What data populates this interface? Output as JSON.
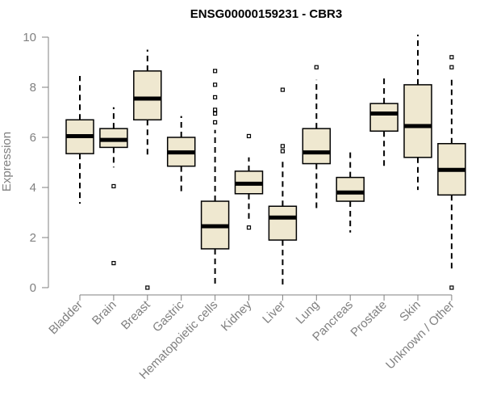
{
  "chart_data": {
    "type": "box",
    "title": "ENSG00000159231 - CBR3",
    "xlabel": "",
    "ylabel": "Expression",
    "ylim": [
      0,
      10
    ],
    "yticks": [
      0,
      2,
      4,
      6,
      8,
      10
    ],
    "grid": false,
    "legend": "none",
    "colors": {
      "box_fill": "#efe8d0",
      "outline": "#000000",
      "axis": "#808080",
      "tick_text": "#808080"
    },
    "categories": [
      "Bladder",
      "Brain",
      "Breast",
      "Gastric",
      "Hematopoietic cells",
      "Kidney",
      "Liver",
      "Lung",
      "Pancreas",
      "Prostate",
      "Skin",
      "Unknown / Other"
    ],
    "boxes": [
      {
        "category": "Bladder",
        "whisker_low": 3.35,
        "q1": 5.35,
        "median": 6.05,
        "q3": 6.7,
        "whisker_high": 8.45,
        "outliers": []
      },
      {
        "category": "Brain",
        "whisker_low": 4.8,
        "q1": 5.6,
        "median": 5.9,
        "q3": 6.35,
        "whisker_high": 7.2,
        "outliers": [
          4.05,
          0.98
        ]
      },
      {
        "category": "Breast",
        "whisker_low": 5.2,
        "q1": 6.7,
        "median": 7.55,
        "q3": 8.65,
        "whisker_high": 9.5,
        "outliers": [
          0.0
        ]
      },
      {
        "category": "Gastric",
        "whisker_low": 3.85,
        "q1": 4.85,
        "median": 5.4,
        "q3": 6.0,
        "whisker_high": 6.85,
        "outliers": []
      },
      {
        "category": "Hematopoietic cells",
        "whisker_low": 0.0,
        "q1": 1.55,
        "median": 2.45,
        "q3": 3.45,
        "whisker_high": 6.3,
        "outliers": [
          6.6,
          6.95,
          7.1,
          7.6,
          8.1,
          8.65
        ]
      },
      {
        "category": "Kidney",
        "whisker_low": 2.6,
        "q1": 3.75,
        "median": 4.15,
        "q3": 4.65,
        "whisker_high": 5.2,
        "outliers": [
          6.05,
          2.4
        ]
      },
      {
        "category": "Liver",
        "whisker_low": 0.0,
        "q1": 1.9,
        "median": 2.8,
        "q3": 3.25,
        "whisker_high": 5.1,
        "outliers": [
          5.45,
          5.65,
          7.9
        ]
      },
      {
        "category": "Lung",
        "whisker_low": 3.15,
        "q1": 4.95,
        "median": 5.4,
        "q3": 6.35,
        "whisker_high": 8.3,
        "outliers": [
          8.8
        ]
      },
      {
        "category": "Pancreas",
        "whisker_low": 2.2,
        "q1": 3.45,
        "median": 3.8,
        "q3": 4.4,
        "whisker_high": 5.4,
        "outliers": []
      },
      {
        "category": "Prostate",
        "whisker_low": 4.8,
        "q1": 6.25,
        "median": 6.95,
        "q3": 7.35,
        "whisker_high": 8.35,
        "outliers": []
      },
      {
        "category": "Skin",
        "whisker_low": 3.9,
        "q1": 5.2,
        "median": 6.45,
        "q3": 8.1,
        "whisker_high": 10.1,
        "outliers": []
      },
      {
        "category": "Unknown / Other",
        "whisker_low": 0.7,
        "q1": 3.7,
        "median": 4.7,
        "q3": 5.75,
        "whisker_high": 8.4,
        "outliers": [
          0.0,
          8.8,
          9.2
        ]
      }
    ]
  }
}
